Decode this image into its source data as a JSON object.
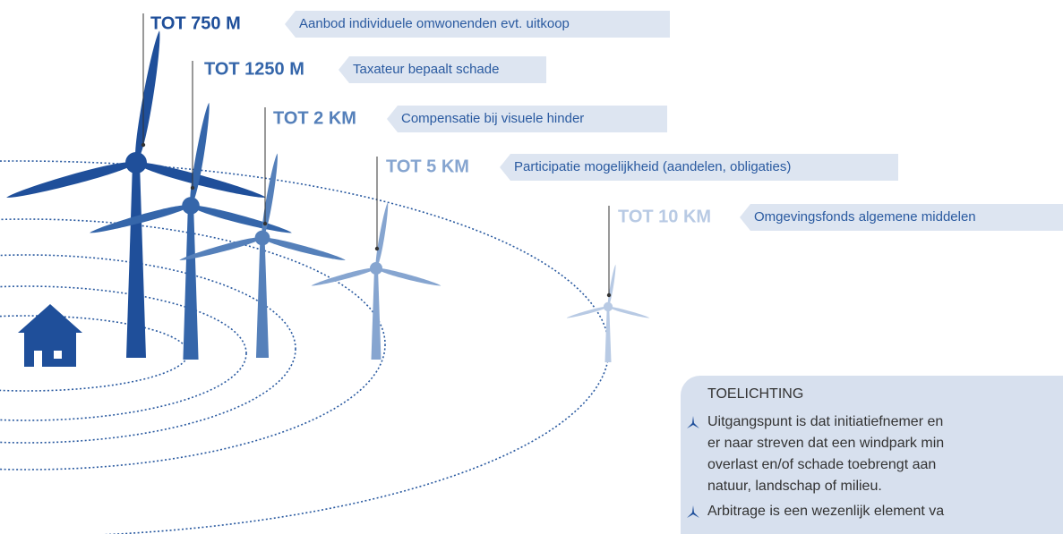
{
  "zones": [
    {
      "distance": "TOT 750 M",
      "description": "Aanbod individuele omwonenden evt. uitkoop"
    },
    {
      "distance": "TOT 1250 M",
      "description": "Taxateur bepaalt schade"
    },
    {
      "distance": "TOT 2 KM",
      "description": "Compensatie bij visuele hinder"
    },
    {
      "distance": "TOT 5 KM",
      "description": "Participatie mogelijkheid (aandelen, obligaties)"
    },
    {
      "distance": "TOT 10 KM",
      "description": "Omgevingsfonds algemene middelen"
    }
  ],
  "note": {
    "title": "TOELICHTING",
    "items": [
      {
        "lines": [
          "Uitgangspunt is dat initiatiefnemer en",
          "er naar streven dat een windpark min",
          "overlast en/of schade toebrengt aan",
          "natuur, landschap of milieu."
        ]
      },
      {
        "lines": [
          "Arbitrage is een wezenlijk element va"
        ]
      }
    ]
  }
}
